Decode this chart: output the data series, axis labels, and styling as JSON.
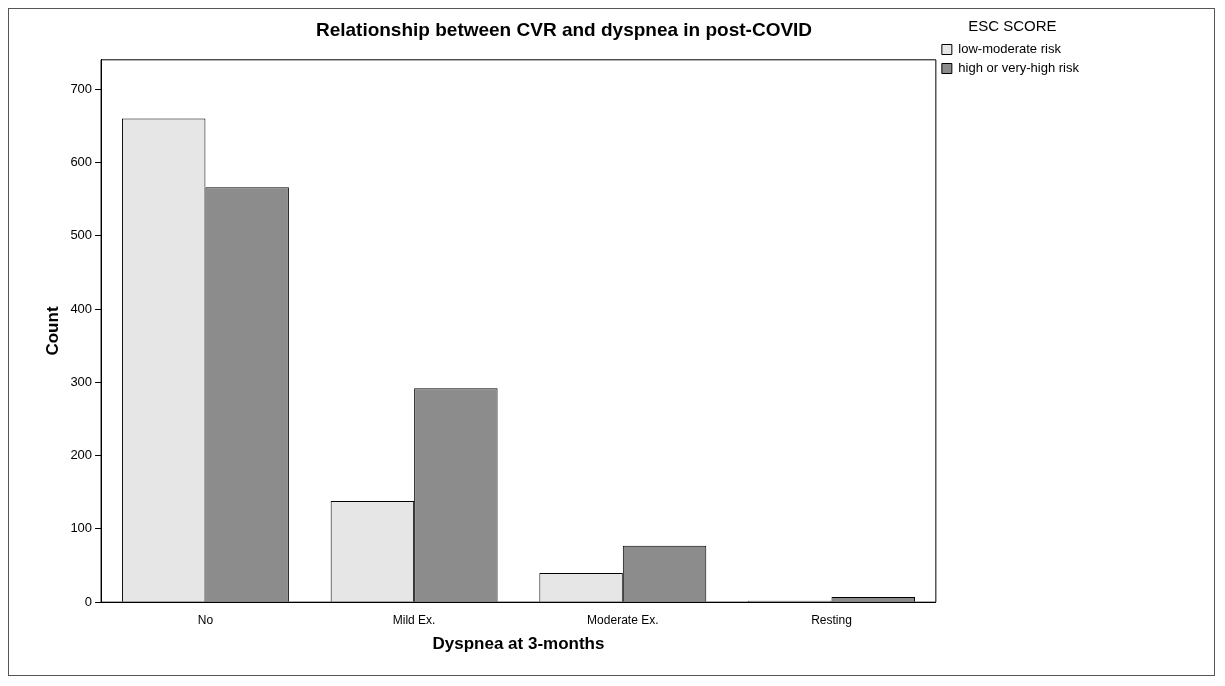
{
  "chart_data": {
    "type": "bar",
    "title": "Relationship between CVR and dyspnea in post-COVID",
    "xlabel": "Dyspnea at 3-months",
    "ylabel": "Count",
    "legend_title": "ESC SCORE",
    "legend": "top right",
    "categories": [
      "No",
      "Mild Ex.",
      "Moderate Ex.",
      "Resting"
    ],
    "series": [
      {
        "name": "low-moderate risk",
        "color": "#e6e6e6",
        "values": [
          660,
          138,
          40,
          2
        ]
      },
      {
        "name": "high or very-high risk",
        "color": "#8c8c8c",
        "values": [
          566,
          292,
          77,
          7
        ]
      }
    ],
    "ylim": [
      0,
      740
    ],
    "yticks": [
      0,
      100,
      200,
      300,
      400,
      500,
      600,
      700
    ],
    "grid": false
  }
}
